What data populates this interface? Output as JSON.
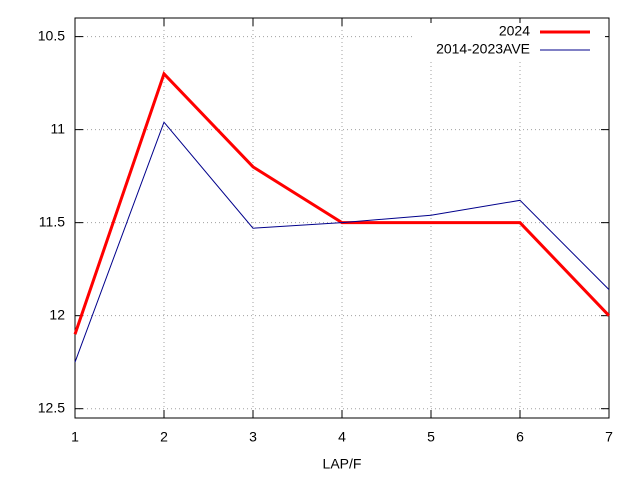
{
  "chart_data": {
    "type": "line",
    "xlabel": "LAP/F",
    "x": [
      1,
      2,
      3,
      4,
      5,
      6,
      7
    ],
    "series": [
      {
        "name": "2024",
        "color": "#ff0000",
        "values": [
          12.1,
          10.7,
          11.2,
          11.5,
          11.5,
          11.5,
          12.0
        ]
      },
      {
        "name": "2014-2023AVE",
        "color": "#00008b",
        "values": [
          12.25,
          10.96,
          11.53,
          11.5,
          11.46,
          11.38,
          11.86
        ]
      }
    ],
    "xlim": [
      1,
      7
    ],
    "xticks": [
      1,
      2,
      3,
      4,
      5,
      6,
      7
    ],
    "ylim": [
      12.55,
      10.4
    ],
    "yticks": [
      10.5,
      11,
      11.5,
      12,
      12.5
    ],
    "grid": true,
    "legend": "top-right"
  }
}
